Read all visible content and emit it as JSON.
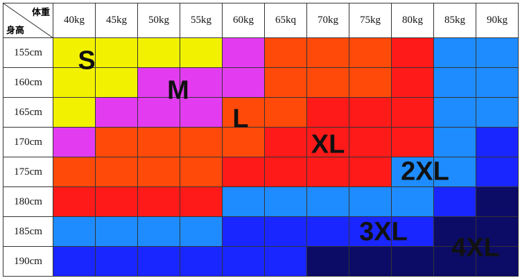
{
  "header": {
    "weight_label": "体重",
    "height_label": "身高"
  },
  "columns": [
    "40kg",
    "45kg",
    "50kg",
    "55kg",
    "60kg",
    "65kq",
    "70kg",
    "75kg",
    "80kg",
    "85kg",
    "90kg"
  ],
  "rows": [
    "155cm",
    "160cm",
    "165cm",
    "170cm",
    "175cm",
    "180cm",
    "185cm",
    "190cm"
  ],
  "sizes": [
    "S",
    "M",
    "L",
    "XL",
    "2XL",
    "3XL",
    "4XL"
  ]
}
